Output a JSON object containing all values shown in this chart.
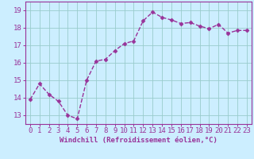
{
  "x": [
    0,
    1,
    2,
    3,
    4,
    5,
    6,
    7,
    8,
    9,
    10,
    11,
    12,
    13,
    14,
    15,
    16,
    17,
    18,
    19,
    20,
    21,
    22,
    23
  ],
  "y": [
    13.9,
    14.8,
    14.2,
    13.8,
    13.0,
    12.8,
    15.0,
    16.1,
    16.2,
    16.7,
    17.1,
    17.25,
    18.4,
    18.9,
    18.6,
    18.45,
    18.25,
    18.3,
    18.1,
    17.95,
    18.2,
    17.7,
    17.85,
    17.85
  ],
  "line_color": "#993399",
  "marker_color": "#993399",
  "bg_color": "#cceeff",
  "grid_color": "#99cccc",
  "xlabel": "Windchill (Refroidissement éolien,°C)",
  "ylim": [
    12.5,
    19.5
  ],
  "xlim": [
    -0.5,
    23.5
  ],
  "yticks": [
    13,
    14,
    15,
    16,
    17,
    18,
    19
  ],
  "xticks": [
    0,
    1,
    2,
    3,
    4,
    5,
    6,
    7,
    8,
    9,
    10,
    11,
    12,
    13,
    14,
    15,
    16,
    17,
    18,
    19,
    20,
    21,
    22,
    23
  ],
  "xlabel_fontsize": 6.5,
  "tick_fontsize": 6.5,
  "line_width": 1.0,
  "marker_size": 2.5
}
